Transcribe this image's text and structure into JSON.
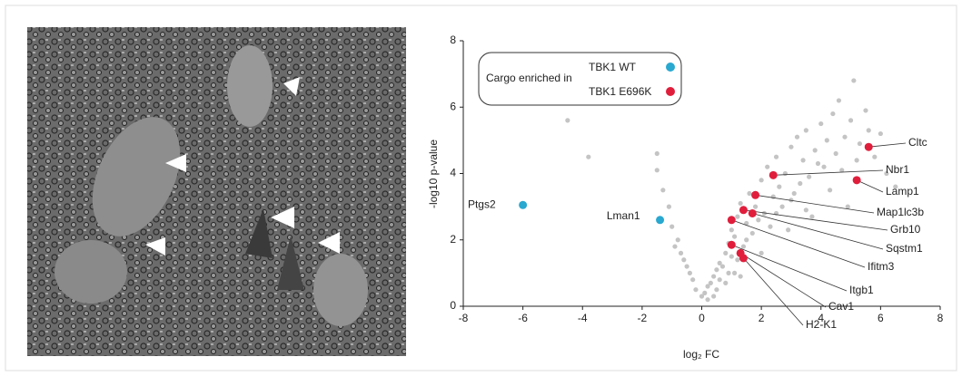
{
  "chart_data": {
    "type": "scatter",
    "xlabel": "log₂ FC",
    "ylabel": "-log10 p-value",
    "xlim": [
      -8,
      8
    ],
    "ylim": [
      0,
      8
    ],
    "xticks": [
      -8,
      -6,
      -4,
      -2,
      0,
      2,
      4,
      6,
      8
    ],
    "yticks": [
      0,
      2,
      4,
      6,
      8
    ],
    "legend_title": "Cargo enriched in",
    "background_points": {
      "color": "#c4c4c4",
      "x": [
        -4.5,
        -3.8,
        -1.5,
        -1.5,
        -1.3,
        -1.1,
        -1.0,
        -0.8,
        -0.7,
        -0.6,
        -0.4,
        -0.3,
        -0.2,
        0.0,
        0.1,
        0.2,
        0.3,
        0.4,
        0.5,
        0.6,
        0.7,
        0.8,
        0.9,
        1.0,
        1.1,
        1.2,
        1.3,
        1.5,
        1.6,
        1.8,
        2.0,
        2.1,
        2.2,
        2.4,
        2.5,
        2.6,
        2.8,
        3.0,
        3.1,
        3.2,
        3.4,
        3.5,
        3.6,
        3.8,
        4.0,
        4.1,
        4.2,
        4.4,
        4.5,
        4.6,
        4.8,
        5.0,
        5.1,
        5.3,
        5.5,
        5.8,
        6.0,
        6.2,
        6.5,
        0.6,
        0.9,
        1.2,
        1.4,
        1.7,
        1.9,
        2.3,
        2.7,
        3.3,
        3.9,
        4.3,
        4.7,
        5.2,
        5.6,
        0.2,
        0.5,
        0.8,
        1.1,
        1.5,
        2.0,
        2.5,
        3.0,
        3.5,
        -0.5,
        -0.9,
        1.3,
        2.9,
        3.7,
        4.9,
        0.4,
        1.0
      ],
      "y": [
        5.6,
        4.5,
        4.6,
        4.1,
        3.5,
        3.0,
        2.4,
        2.0,
        1.6,
        1.4,
        1.0,
        0.8,
        0.5,
        0.3,
        0.4,
        0.6,
        0.7,
        0.9,
        1.1,
        1.3,
        1.2,
        1.6,
        1.9,
        2.3,
        2.1,
        2.7,
        3.1,
        2.5,
        3.4,
        3.0,
        3.8,
        2.8,
        4.2,
        3.3,
        4.5,
        3.6,
        4.0,
        4.8,
        3.4,
        5.1,
        4.4,
        5.3,
        3.9,
        4.7,
        5.5,
        4.2,
        5.0,
        5.8,
        4.6,
        6.2,
        5.1,
        5.6,
        6.8,
        4.9,
        5.9,
        4.5,
        5.2,
        4.0,
        3.6,
        0.8,
        1.0,
        1.4,
        1.8,
        2.2,
        2.6,
        2.4,
        3.0,
        3.7,
        4.3,
        3.5,
        4.1,
        4.4,
        5.3,
        0.2,
        0.5,
        0.7,
        1.0,
        2.0,
        1.6,
        2.8,
        3.2,
        2.9,
        1.2,
        1.8,
        0.9,
        2.3,
        2.7,
        3.0,
        0.3,
        1.5
      ]
    },
    "series": [
      {
        "name": "TBK1 WT",
        "color": "#29a8d0",
        "x": [
          -6.0,
          -1.4
        ],
        "y": [
          3.05,
          2.6
        ],
        "labels": [
          "Ptgs2",
          "Lman1"
        ]
      },
      {
        "name": "TBK1 E696K",
        "color": "#e01e3c",
        "x": [
          5.6,
          2.4,
          5.2,
          1.8,
          1.4,
          1.7,
          1.0,
          1.0,
          1.3,
          1.4
        ],
        "y": [
          4.8,
          3.95,
          3.8,
          3.35,
          2.9,
          2.8,
          2.6,
          1.85,
          1.6,
          1.45
        ],
        "labels": [
          "Cltc",
          "Nbr1",
          "Lamp1",
          "Map1lc3b",
          "Grb10",
          "Sqstm1",
          "Ifitm3",
          "Itgb1",
          "Cav1",
          "H2-K1"
        ]
      }
    ]
  }
}
